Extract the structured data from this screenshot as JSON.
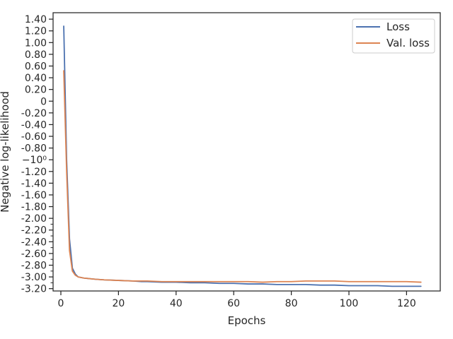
{
  "chart_data": {
    "type": "line",
    "title": "",
    "xlabel": "Epochs",
    "ylabel": "Negative log-likelihood",
    "xlim": [
      -2.7,
      131.7
    ],
    "xticks": [
      0,
      20,
      40,
      60,
      80,
      100,
      120
    ],
    "xtick_labels": [
      "0",
      "20",
      "40",
      "60",
      "80",
      "100",
      "120"
    ],
    "ylim": [
      -3.24,
      1.51
    ],
    "y_ticks": [
      {
        "value": 1.4,
        "label": "1.40"
      },
      {
        "value": 1.2,
        "label": "1.20"
      },
      {
        "value": 1.0,
        "label": "1.00"
      },
      {
        "value": 0.8,
        "label": "0.80"
      },
      {
        "value": 0.6,
        "label": "0.60"
      },
      {
        "value": 0.4,
        "label": "0.40"
      },
      {
        "value": 0.2,
        "label": "0.20"
      },
      {
        "value": 0.0,
        "label": "0"
      },
      {
        "value": -0.2,
        "label": "-0.20"
      },
      {
        "value": -0.4,
        "label": "-0.40"
      },
      {
        "value": -0.6,
        "label": "-0.60"
      },
      {
        "value": -0.8,
        "label": "-0.80"
      },
      {
        "value": -1.0,
        "label": "−10⁰"
      },
      {
        "value": -1.2,
        "label": "-1.20"
      },
      {
        "value": -1.4,
        "label": "-1.40"
      },
      {
        "value": -1.6,
        "label": "-1.60"
      },
      {
        "value": -1.8,
        "label": "-1.80"
      },
      {
        "value": -2.0,
        "label": "-2.00"
      },
      {
        "value": -2.2,
        "label": "-2.20"
      },
      {
        "value": -2.4,
        "label": "-2.40"
      },
      {
        "value": -2.6,
        "label": "-2.60"
      },
      {
        "value": -2.8,
        "label": "-2.80"
      },
      {
        "value": -3.0,
        "label": "-3.00"
      },
      {
        "value": -3.2,
        "label": "-3.20"
      }
    ],
    "y_minor_ticks": [
      -2.1,
      -2.3,
      -2.5,
      -2.7,
      -2.9,
      -3.1
    ],
    "grid": false,
    "legend": {
      "position": "top-right",
      "entries": [
        "Loss",
        "Val. loss"
      ]
    },
    "series": [
      {
        "name": "Loss",
        "color": "#4c72b0",
        "x": [
          1,
          2,
          3,
          4,
          5,
          6,
          8,
          10,
          12,
          15,
          20,
          25,
          28,
          30,
          35,
          40,
          45,
          50,
          55,
          60,
          65,
          70,
          75,
          80,
          85,
          90,
          95,
          100,
          105,
          110,
          115,
          120,
          125
        ],
        "values": [
          1.28,
          -1.0,
          -2.35,
          -2.85,
          -2.95,
          -3.0,
          -3.02,
          -3.03,
          -3.04,
          -3.05,
          -3.06,
          -3.07,
          -3.08,
          -3.08,
          -3.09,
          -3.09,
          -3.1,
          -3.1,
          -3.11,
          -3.11,
          -3.12,
          -3.12,
          -3.13,
          -3.13,
          -3.13,
          -3.14,
          -3.14,
          -3.15,
          -3.15,
          -3.15,
          -3.16,
          -3.16,
          -3.16
        ]
      },
      {
        "name": "Val. loss",
        "color": "#dd8452",
        "x": [
          1,
          2,
          3,
          4,
          5,
          6,
          8,
          10,
          12,
          15,
          20,
          25,
          28,
          30,
          35,
          40,
          45,
          50,
          55,
          60,
          65,
          70,
          75,
          80,
          85,
          90,
          95,
          100,
          105,
          110,
          115,
          120,
          125
        ],
        "values": [
          0.52,
          -1.2,
          -2.55,
          -2.9,
          -2.97,
          -3.0,
          -3.02,
          -3.03,
          -3.04,
          -3.05,
          -3.06,
          -3.07,
          -3.07,
          -3.07,
          -3.08,
          -3.08,
          -3.08,
          -3.08,
          -3.08,
          -3.08,
          -3.08,
          -3.09,
          -3.08,
          -3.08,
          -3.07,
          -3.07,
          -3.07,
          -3.08,
          -3.08,
          -3.08,
          -3.08,
          -3.08,
          -3.09
        ]
      }
    ]
  }
}
